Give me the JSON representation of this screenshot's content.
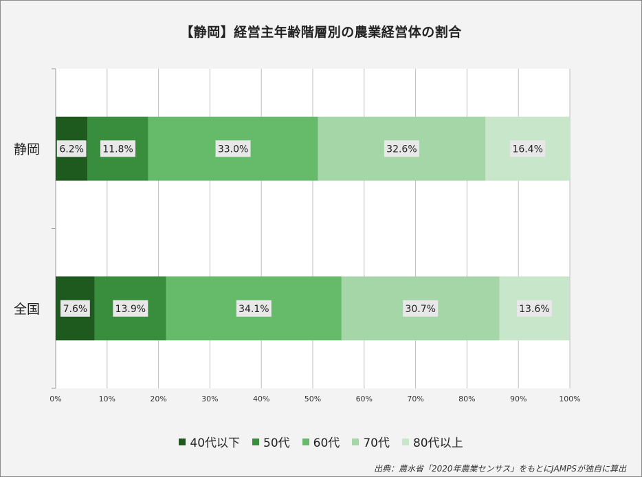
{
  "chart_data": {
    "type": "bar",
    "orientation": "horizontal",
    "stacked": true,
    "title": "【静岡】経営主年齢階層別の農業経営体の割合",
    "categories": [
      "静岡",
      "全国"
    ],
    "series": [
      {
        "name": "40代以下",
        "color": "#1e5a1e",
        "values": [
          6.2,
          7.6
        ]
      },
      {
        "name": "50代",
        "color": "#388e3c",
        "values": [
          11.8,
          13.9
        ]
      },
      {
        "name": "60代",
        "color": "#66bb6a",
        "values": [
          33.0,
          34.1
        ]
      },
      {
        "name": "70代",
        "color": "#a5d6a7",
        "values": [
          32.6,
          30.7
        ]
      },
      {
        "name": "80代以上",
        "color": "#c8e6c9",
        "values": [
          16.4,
          13.6
        ]
      }
    ],
    "data_labels": [
      [
        "6.2%",
        "11.8%",
        "33.0%",
        "32.6%",
        "16.4%"
      ],
      [
        "7.6%",
        "13.9%",
        "34.1%",
        "30.7%",
        "13.6%"
      ]
    ],
    "xlim": [
      0,
      100
    ],
    "x_ticks": [
      "0%",
      "10%",
      "20%",
      "30%",
      "40%",
      "50%",
      "60%",
      "70%",
      "80%",
      "90%",
      "100%"
    ],
    "grid": true,
    "legend_position": "bottom"
  },
  "source_note": "出典：農水省「2020年農業センサス」をもとにJAMPSが独自に算出"
}
